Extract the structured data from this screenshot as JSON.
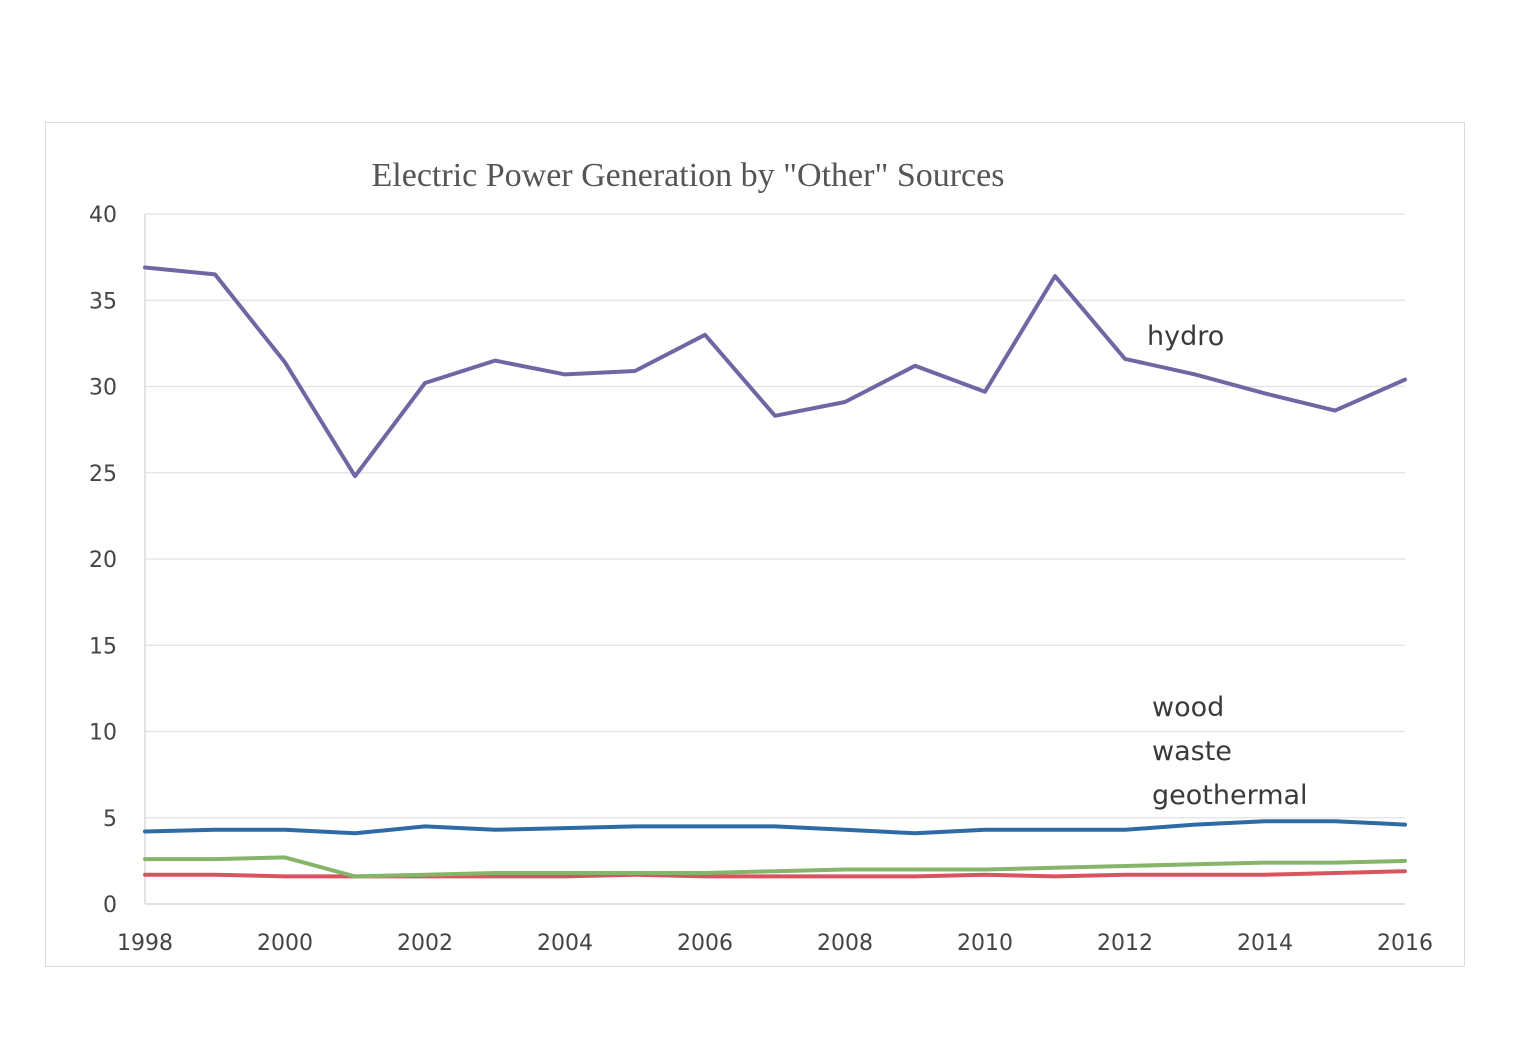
{
  "chart_data": {
    "type": "line",
    "title": "Electric Power Generation by \"Other\" Sources",
    "xlabel": "",
    "ylabel": "",
    "xlim": [
      1998,
      2016
    ],
    "ylim": [
      0,
      40
    ],
    "yticks": [
      0,
      5,
      10,
      15,
      20,
      25,
      30,
      35,
      40
    ],
    "xticks": [
      1998,
      2000,
      2002,
      2004,
      2006,
      2008,
      2010,
      2012,
      2014,
      2016
    ],
    "x": [
      1998,
      1999,
      2000,
      2001,
      2002,
      2003,
      2004,
      2005,
      2006,
      2007,
      2008,
      2009,
      2010,
      2011,
      2012,
      2013,
      2014,
      2015,
      2016
    ],
    "grid": true,
    "series": [
      {
        "color": "#7166a3",
        "values": [
          36.9,
          36.5,
          31.4,
          24.8,
          30.2,
          31.5,
          30.7,
          30.9,
          33.0,
          28.3,
          29.1,
          31.2,
          29.7,
          36.4,
          31.6,
          30.7,
          29.6,
          28.6,
          30.4
        ]
      },
      {
        "color": "#2e6aa6",
        "values": [
          4.2,
          4.3,
          4.3,
          4.1,
          4.5,
          4.3,
          4.4,
          4.5,
          4.5,
          4.5,
          4.3,
          4.1,
          4.3,
          4.3,
          4.3,
          4.6,
          4.8,
          4.8,
          4.6
        ]
      },
      {
        "color": "#86b56a",
        "values": [
          2.6,
          2.6,
          2.7,
          1.6,
          1.7,
          1.8,
          1.8,
          1.8,
          1.8,
          1.9,
          2.0,
          2.0,
          2.0,
          2.1,
          2.2,
          2.3,
          2.4,
          2.4,
          2.5
        ]
      },
      {
        "color": "#d9545e",
        "values": [
          1.7,
          1.7,
          1.6,
          1.6,
          1.6,
          1.6,
          1.6,
          1.7,
          1.6,
          1.6,
          1.6,
          1.6,
          1.7,
          1.6,
          1.7,
          1.7,
          1.7,
          1.8,
          1.9
        ]
      }
    ],
    "annotations": [
      {
        "text": "hydro"
      },
      {
        "text": "wood"
      },
      {
        "text": "waste"
      },
      {
        "text": "geothermal"
      }
    ]
  }
}
